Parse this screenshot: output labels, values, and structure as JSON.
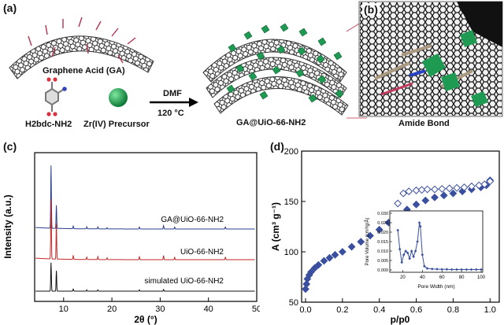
{
  "panel_labels": {
    "a": "(a)",
    "b": "(b)",
    "c": "(c)",
    "d": "(d)"
  },
  "scheme": {
    "graphene_acid": "Graphene Acid (GA)",
    "linker": "H2bdc-NH2",
    "zr_precursor": "Zr(IV) Precursor",
    "solvent": "DMF",
    "temperature": "120 °C",
    "product": "GA@UiO-66-NH2",
    "amide_bond": "Amide Bond"
  },
  "chart_data": [
    {
      "type": "line",
      "panel": "c",
      "xlabel": "2θ (°)",
      "ylabel": "Intensity (a.u.)",
      "xlim": [
        4,
        50
      ],
      "x_ticks": [
        10,
        20,
        30,
        40,
        50
      ],
      "series": [
        {
          "name": "GA@UiO-66-NH2",
          "color": "#2b3f8f",
          "peaks": [
            [
              7.4,
              0.95
            ],
            [
              8.5,
              0.35
            ],
            [
              12.0,
              0.04
            ],
            [
              14.8,
              0.03
            ],
            [
              17.1,
              0.03
            ],
            [
              19.0,
              0.02
            ],
            [
              25.7,
              0.03
            ],
            [
              30.7,
              0.05
            ],
            [
              33.0,
              0.03
            ],
            [
              43.5,
              0.03
            ]
          ]
        },
        {
          "name": "UiO-66-NH2",
          "color": "#c42a2a",
          "peaks": [
            [
              7.4,
              1.0
            ],
            [
              8.5,
              0.6
            ],
            [
              12.0,
              0.06
            ],
            [
              14.8,
              0.04
            ],
            [
              17.1,
              0.05
            ],
            [
              19.0,
              0.03
            ],
            [
              25.7,
              0.05
            ],
            [
              30.7,
              0.07
            ],
            [
              33.0,
              0.04
            ],
            [
              43.5,
              0.04
            ]
          ]
        },
        {
          "name": "simulated UiO-66-NH2",
          "color": "#111111",
          "peaks": [
            [
              7.4,
              0.7
            ],
            [
              8.5,
              0.5
            ],
            [
              12.0,
              0.05
            ],
            [
              14.8,
              0.03
            ],
            [
              17.1,
              0.03
            ],
            [
              25.7,
              0.03
            ],
            [
              30.7,
              0.04
            ]
          ]
        }
      ]
    },
    {
      "type": "scatter",
      "panel": "d",
      "xlabel": "p/p0",
      "ylabel": "A (cm³ g⁻¹)",
      "xlim": [
        0,
        1.05
      ],
      "ylim": [
        50,
        200
      ],
      "x_ticks": [
        "0.0",
        "0.2",
        "0.4",
        "0.6",
        "0.8",
        "1.0"
      ],
      "y_ticks": [
        "50",
        "100",
        "150",
        "200"
      ],
      "series": [
        {
          "name": "adsorption",
          "marker": "filled-diamond",
          "color": "#3a4f9e",
          "x": [
            0.0,
            0.005,
            0.01,
            0.02,
            0.03,
            0.05,
            0.07,
            0.1,
            0.13,
            0.16,
            0.2,
            0.25,
            0.3,
            0.35,
            0.4,
            0.45,
            0.5,
            0.55,
            0.6,
            0.65,
            0.7,
            0.75,
            0.8,
            0.85,
            0.9,
            0.95,
            0.98,
            1.0
          ],
          "y": [
            63,
            68,
            73,
            77,
            80,
            84,
            87,
            91,
            94,
            97,
            100,
            105,
            110,
            116,
            122,
            129,
            136,
            142,
            147,
            151,
            154,
            156,
            158,
            160,
            162,
            164,
            166,
            171
          ]
        },
        {
          "name": "desorption",
          "marker": "open-diamond",
          "color": "#3a4f9e",
          "x": [
            0.5,
            0.53,
            0.56,
            0.6,
            0.63,
            0.66,
            0.7,
            0.74,
            0.78,
            0.82,
            0.86,
            0.9,
            0.94,
            0.97,
            1.0
          ],
          "y": [
            148,
            158,
            160,
            161,
            161.5,
            162,
            162,
            162.5,
            163,
            163.5,
            164,
            165,
            166,
            167,
            170
          ]
        }
      ],
      "inset": {
        "type": "line",
        "xlabel": "Pore Width (nm)",
        "ylabel": "Pore Volume (cm³/g/Å)",
        "xlim": [
          10,
          100
        ],
        "ylim": [
          0,
          0.03
        ],
        "x_ticks": [
          "20",
          "40",
          "60",
          "80",
          "100"
        ],
        "y_ticks": [
          "0.000",
          "0.005",
          "0.010",
          "0.015",
          "0.020",
          "0.025",
          "0.030"
        ],
        "x": [
          15,
          17,
          19,
          21,
          23,
          25,
          27,
          29,
          31,
          33,
          35,
          37,
          38,
          40,
          42,
          45,
          50,
          55,
          60,
          65,
          70,
          75,
          80,
          85,
          90,
          95,
          100
        ],
        "y": [
          0.021,
          0.011,
          0.004,
          0.008,
          0.01,
          0.009,
          0.006,
          0.01,
          0.007,
          0.01,
          0.015,
          0.025,
          0.023,
          0.008,
          0.002,
          0.0008,
          0.0005,
          0.0004,
          0.0003,
          0.0003,
          0.0002,
          0.0002,
          0.0002,
          0.0002,
          0.0002,
          0.0002,
          0.0002
        ]
      }
    }
  ]
}
